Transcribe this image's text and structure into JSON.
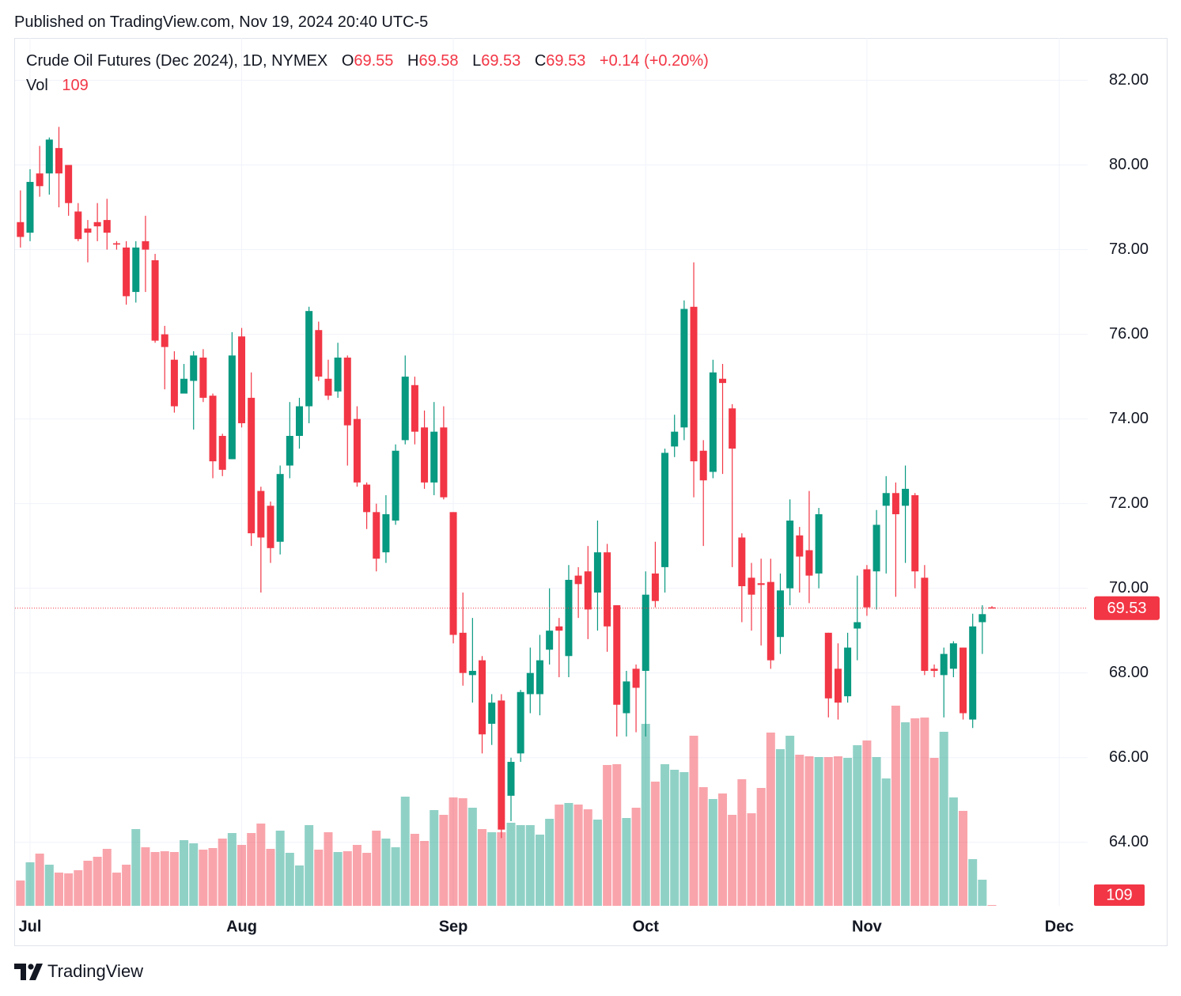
{
  "header": {
    "published": "Published on TradingView.com, Nov 19, 2024 20:40 UTC-5",
    "brand": "TradingView"
  },
  "chart_data": {
    "type": "candlestick",
    "title": "Crude Oil Futures (Dec 2024), 1D, NYMEX",
    "legend": {
      "o": "O",
      "h": "H",
      "l": "L",
      "c": "C",
      "change": "+0.14 (+0.20%)",
      "vol": "Vol"
    },
    "categories": [
      null,
      "Jul",
      null,
      null,
      null,
      null,
      null,
      null,
      null,
      null,
      null,
      null,
      null,
      null,
      null,
      null,
      null,
      null,
      null,
      null,
      null,
      null,
      null,
      "Aug",
      null,
      null,
      null,
      null,
      null,
      null,
      null,
      null,
      null,
      null,
      null,
      null,
      null,
      null,
      null,
      null,
      null,
      null,
      null,
      null,
      null,
      "Sep",
      null,
      null,
      null,
      null,
      null,
      null,
      null,
      null,
      null,
      null,
      null,
      null,
      null,
      null,
      null,
      null,
      null,
      null,
      null,
      "Oct",
      null,
      null,
      null,
      null,
      null,
      null,
      null,
      null,
      null,
      null,
      null,
      null,
      null,
      null,
      null,
      null,
      null,
      null,
      null,
      null,
      null,
      null,
      "Nov",
      null,
      null,
      null,
      null,
      null,
      null,
      null,
      null,
      null,
      null,
      null,
      null,
      null,
      null,
      null,
      null,
      null,
      null,
      null,
      "Dec"
    ],
    "open": [
      78.65,
      78.4,
      79.8,
      79.8,
      80.4,
      80.0,
      78.9,
      78.5,
      78.65,
      78.7,
      78.15,
      78.05,
      77.0,
      78.2,
      77.75,
      76.0,
      75.4,
      74.6,
      74.9,
      75.45,
      74.55,
      73.6,
      73.05,
      75.95,
      74.5,
      72.3,
      71.95,
      71.1,
      72.9,
      73.6,
      74.3,
      76.1,
      74.95,
      74.65,
      75.45,
      74.0,
      72.45,
      71.8,
      70.85,
      71.6,
      73.5,
      74.8,
      73.8,
      72.5,
      73.8,
      71.8,
      68.95,
      67.95,
      68.3,
      66.8,
      67.35,
      65.1,
      66.1,
      67.5,
      67.5,
      68.55,
      69.1,
      68.4,
      70.3,
      70.4,
      69.9,
      70.85,
      69.6,
      67.05,
      68.1,
      68.05,
      70.35,
      70.5,
      73.35,
      73.8,
      76.65,
      73.25,
      72.75,
      74.95,
      74.25,
      71.2,
      70.25,
      70.12,
      70.15,
      68.85,
      70.0,
      71.25,
      70.9,
      70.35,
      68.95,
      68.1,
      67.45,
      69.05,
      70.45,
      70.4,
      71.95,
      72.25,
      71.95,
      72.2,
      70.25,
      68.1,
      67.95,
      68.1,
      68.6,
      66.9,
      69.2,
      69.55,
      null,
      null,
      null,
      null,
      null,
      null,
      null
    ],
    "high": [
      79.4,
      79.9,
      80.45,
      80.65,
      80.9,
      80.0,
      79.1,
      78.7,
      79.1,
      79.2,
      78.2,
      78.2,
      78.2,
      78.8,
      77.9,
      76.2,
      75.6,
      75.3,
      75.6,
      75.65,
      74.6,
      73.65,
      76.05,
      76.15,
      75.1,
      72.4,
      72.05,
      72.9,
      74.4,
      74.5,
      76.65,
      76.3,
      75.4,
      75.8,
      75.5,
      74.3,
      72.5,
      72.0,
      72.2,
      73.4,
      75.5,
      75.0,
      74.2,
      74.4,
      74.3,
      71.8,
      69.9,
      69.3,
      68.4,
      67.5,
      67.5,
      66.0,
      67.6,
      68.6,
      68.9,
      70.0,
      69.3,
      70.55,
      70.5,
      71.0,
      71.6,
      71.05,
      69.6,
      68.05,
      68.2,
      70.4,
      71.1,
      73.3,
      74.1,
      76.8,
      77.7,
      73.5,
      75.4,
      75.3,
      74.35,
      71.3,
      70.6,
      70.7,
      70.7,
      70.35,
      72.1,
      71.45,
      72.3,
      71.9,
      68.95,
      68.7,
      68.95,
      70.3,
      70.55,
      71.85,
      72.65,
      72.5,
      72.9,
      72.25,
      70.55,
      68.2,
      68.6,
      68.75,
      68.6,
      69.4,
      69.6,
      69.58,
      null,
      null,
      null,
      null,
      null,
      null,
      null
    ],
    "low": [
      78.05,
      78.2,
      79.25,
      79.3,
      79.0,
      78.8,
      78.2,
      77.7,
      78.2,
      78.0,
      78.0,
      76.7,
      76.75,
      77.0,
      75.8,
      74.7,
      74.15,
      74.6,
      73.75,
      74.4,
      72.6,
      72.65,
      73.05,
      73.8,
      71.0,
      69.9,
      70.6,
      70.8,
      72.6,
      73.3,
      73.9,
      74.9,
      74.45,
      74.5,
      72.9,
      72.4,
      71.4,
      70.4,
      70.6,
      71.5,
      73.4,
      73.4,
      72.35,
      72.2,
      72.1,
      68.7,
      67.7,
      67.3,
      66.1,
      66.3,
      64.1,
      64.5,
      65.9,
      67.05,
      67.0,
      68.2,
      67.9,
      67.9,
      69.3,
      68.8,
      69.0,
      68.5,
      66.5,
      66.5,
      66.6,
      66.5,
      69.55,
      69.9,
      73.1,
      73.5,
      72.15,
      71.0,
      72.6,
      72.7,
      70.5,
      69.2,
      69.0,
      68.65,
      68.1,
      68.45,
      69.6,
      69.9,
      69.65,
      70.0,
      66.95,
      66.9,
      67.3,
      68.3,
      69.35,
      69.5,
      70.35,
      69.8,
      70.6,
      70.0,
      67.95,
      67.9,
      66.95,
      67.9,
      66.9,
      66.7,
      68.45,
      69.53,
      null,
      null,
      null,
      null,
      null,
      null,
      null
    ],
    "close": [
      78.3,
      79.6,
      79.5,
      80.6,
      79.8,
      79.1,
      78.25,
      78.4,
      78.55,
      78.4,
      78.12,
      76.9,
      78.05,
      78.0,
      75.85,
      75.7,
      74.3,
      74.95,
      75.5,
      74.5,
      73.0,
      72.8,
      75.5,
      73.9,
      71.3,
      71.2,
      70.95,
      72.7,
      73.6,
      74.3,
      76.55,
      75.0,
      74.55,
      75.45,
      73.85,
      72.5,
      71.8,
      70.7,
      71.75,
      73.25,
      75.0,
      73.7,
      72.5,
      73.7,
      72.15,
      68.9,
      68.0,
      68.05,
      66.55,
      67.3,
      64.3,
      65.9,
      67.55,
      68.0,
      68.3,
      69.0,
      69.0,
      70.2,
      70.1,
      69.5,
      70.85,
      69.1,
      67.25,
      67.8,
      67.65,
      69.85,
      69.7,
      73.2,
      73.7,
      76.6,
      73.0,
      72.55,
      75.1,
      74.85,
      73.3,
      70.05,
      69.85,
      70.08,
      68.3,
      69.95,
      71.6,
      70.75,
      70.3,
      71.75,
      67.4,
      67.3,
      68.6,
      69.2,
      69.55,
      71.5,
      72.25,
      71.75,
      72.35,
      70.4,
      68.05,
      68.05,
      68.45,
      68.7,
      67.05,
      69.1,
      69.39,
      69.53,
      null,
      null,
      null,
      null,
      null,
      null,
      null
    ],
    "volume": [
      32000,
      55000,
      66000,
      52000,
      42000,
      41000,
      45000,
      57000,
      62000,
      72000,
      42000,
      52000,
      97000,
      74000,
      68000,
      69000,
      68000,
      83000,
      79000,
      71000,
      73000,
      85000,
      92000,
      77000,
      92000,
      104000,
      72000,
      95000,
      67000,
      51000,
      102000,
      71000,
      93000,
      68000,
      69000,
      77000,
      67000,
      95000,
      85000,
      74000,
      138000,
      91000,
      82000,
      121000,
      115000,
      137000,
      136000,
      124000,
      97000,
      93000,
      93000,
      105000,
      102000,
      102000,
      90000,
      110000,
      128000,
      130000,
      128000,
      122000,
      109000,
      178000,
      179000,
      111000,
      124000,
      230000,
      157000,
      179000,
      172000,
      169000,
      215000,
      150000,
      135000,
      142000,
      115000,
      160000,
      117000,
      149000,
      219000,
      198000,
      215000,
      191000,
      189000,
      188000,
      188000,
      189000,
      187000,
      203000,
      209000,
      188000,
      161000,
      253000,
      232000,
      237000,
      238000,
      187000,
      220000,
      137000,
      120000,
      59000,
      33000,
      109,
      null,
      null,
      null,
      null,
      null,
      null,
      null
    ],
    "up_color": "#089981",
    "down_color": "#f23645",
    "ylim": [
      62.5,
      83.0
    ],
    "yticks": [
      {
        "value": 64,
        "label": "64.00"
      },
      {
        "value": 66,
        "label": "66.00"
      },
      {
        "value": 68,
        "label": "68.00"
      },
      {
        "value": 70,
        "label": "70.00"
      },
      {
        "value": 72,
        "label": "72.00"
      },
      {
        "value": 74,
        "label": "74.00"
      },
      {
        "value": 76,
        "label": "76.00"
      },
      {
        "value": 78,
        "label": "78.00"
      },
      {
        "value": 80,
        "label": "80.00"
      },
      {
        "value": 82,
        "label": "82.00"
      }
    ],
    "volume_lim": [
      0,
      400000
    ],
    "grid": true
  }
}
